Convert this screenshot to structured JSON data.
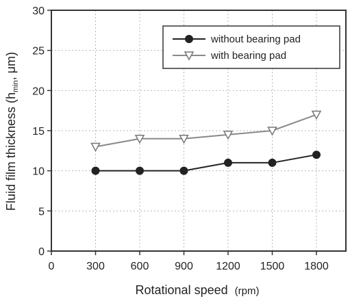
{
  "chart_data": {
    "type": "line",
    "x": [
      300,
      600,
      900,
      1200,
      1500,
      1800
    ],
    "series": [
      {
        "name": "without bearing pad",
        "values": [
          10,
          10,
          10,
          11,
          11,
          12
        ],
        "marker": "filled-circle",
        "color": "#222222"
      },
      {
        "name": "with bearing pad",
        "values": [
          13,
          14,
          14,
          14.5,
          15,
          17
        ],
        "marker": "open-triangle-down",
        "color": "#888888"
      }
    ],
    "xlabel": "Rotational speed",
    "xlabel_unit": "(rpm)",
    "ylabel": "Fluid film thickness (h",
    "ylabel_sub": "min",
    "ylabel_tail": ", μm)",
    "xlim": [
      0,
      2000
    ],
    "ylim": [
      0,
      30
    ],
    "xticks": [
      0,
      300,
      600,
      900,
      1200,
      1500,
      1800
    ],
    "yticks": [
      0,
      5,
      10,
      15,
      20,
      25,
      30
    ],
    "grid": true,
    "legend_position": "top-right"
  }
}
